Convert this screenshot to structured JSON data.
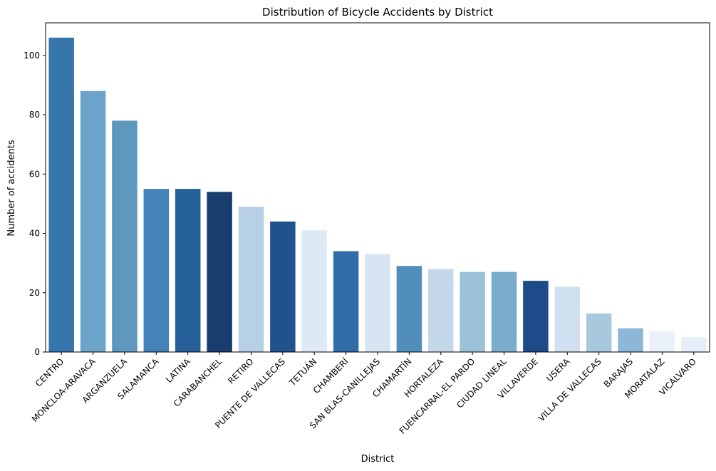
{
  "chart_data": {
    "type": "bar",
    "title": "Distribution of Bicycle Accidents by District",
    "xlabel": "District",
    "ylabel": "Number of accidents",
    "ylim": [
      0,
      111
    ],
    "yticks": [
      0,
      20,
      40,
      60,
      80,
      100
    ],
    "grid": false,
    "categories": [
      "CENTRO",
      "MONCLOA-ARAVACA",
      "ARGANZUELA",
      "SALAMANCA",
      "LATINA",
      "CARABANCHEL",
      "RETIRO",
      "PUENTE DE VALLECAS",
      "TETUÁN",
      "CHAMBERÍ",
      "SAN BLAS-CANILLEJAS",
      "CHAMARTÍN",
      "HORTALEZA",
      "FUENCARRAL-EL PARDO",
      "CIUDAD LINEAL",
      "VILLAVERDE",
      "USERA",
      "VILLA DE VALLECAS",
      "BARAJAS",
      "MORATALAZ",
      "VICÁLVARO"
    ],
    "values": [
      106,
      88,
      78,
      55,
      55,
      54,
      49,
      44,
      41,
      34,
      33,
      29,
      28,
      27,
      27,
      24,
      22,
      13,
      8,
      7,
      5
    ],
    "colors": [
      "#3676AD",
      "#6BA3C9",
      "#5E98BF",
      "#4383B9",
      "#26609B",
      "#183D6E",
      "#B8D0E6",
      "#20528D",
      "#DDE9F5",
      "#306DA9",
      "#D7E5F3",
      "#518EBB",
      "#C5D8EA",
      "#9BC2D8",
      "#7AACCC",
      "#1D4A88",
      "#D1E0F1",
      "#A8C8DD",
      "#8DB7D6",
      "#EAF1FA",
      "#E6EFF9"
    ]
  }
}
